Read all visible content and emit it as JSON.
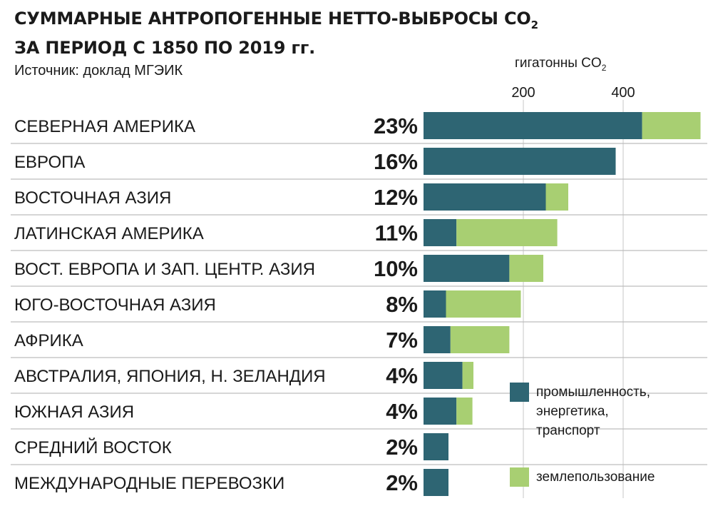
{
  "title_line1": "СУММАРНЫЕ АНТРОПОГЕННЫЕ НЕТТО-ВЫБРОСЫ CO",
  "title_sub": "2",
  "title_line2": "ЗА ПЕРИОД С 1850 ПО 2019 гг.",
  "source": "Источник: доклад МГЭИК",
  "unit_label": "гигатонны CO",
  "unit_sub": "2",
  "colors": {
    "industry": "#2e6573",
    "landuse": "#a8cf72",
    "separator": "#bdbdbd",
    "gridline": "#d0d0d0"
  },
  "legend": [
    {
      "label": "промышленность,\nэнергетика,\nтранспорт",
      "color_key": "industry"
    },
    {
      "label": "землепользование",
      "color_key": "landuse"
    }
  ],
  "chart_data": {
    "type": "bar",
    "orientation": "horizontal",
    "stacked": true,
    "xlabel": "гигатонны CO2",
    "xticks": [
      200,
      400
    ],
    "xlim": [
      0,
      550
    ],
    "grid": "vertical at ticks",
    "legend_position": "bottom-right",
    "categories": [
      "СЕВЕРНАЯ АМЕРИКА",
      "ЕВРОПА",
      "ВОСТОЧНАЯ АЗИЯ",
      "ЛАТИНСКАЯ АМЕРИКА",
      "ВОСТ. ЕВРОПА И ЗАП. ЦЕНТР. АЗИЯ",
      "ЮГО-ВОСТОЧНАЯ АЗИЯ",
      "АФРИКА",
      "АВСТРАЛИЯ, ЯПОНИЯ, Н. ЗЕЛАНДИЯ",
      "ЮЖНАЯ АЗИЯ",
      "СРЕДНИЙ ВОСТОК",
      "МЕЖДУНАРОДНЫЕ ПЕРЕВОЗКИ"
    ],
    "shares": [
      "23%",
      "16%",
      "12%",
      "11%",
      "10%",
      "8%",
      "7%",
      "4%",
      "4%",
      "2%",
      "2%"
    ],
    "series": [
      {
        "name": "промышленность, энергетика, транспорт",
        "color_key": "industry",
        "values": [
          438,
          385,
          245,
          66,
          172,
          45,
          54,
          78,
          66,
          50,
          50
        ]
      },
      {
        "name": "землепользование",
        "color_key": "landuse",
        "values": [
          117,
          0,
          45,
          202,
          68,
          150,
          118,
          22,
          32,
          0,
          0
        ]
      }
    ]
  }
}
